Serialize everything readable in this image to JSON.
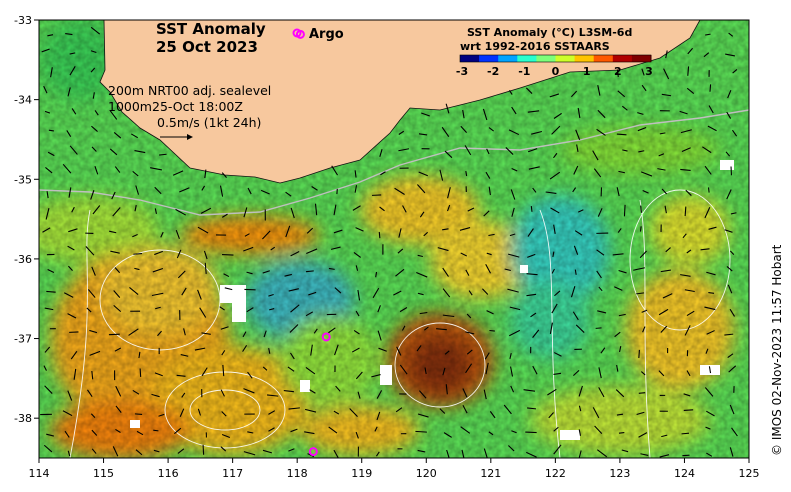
{
  "map": {
    "title_line1": "SST Anomaly",
    "title_line2": "25 Oct 2023",
    "legend_argo_label": "Argo",
    "info": {
      "line1": "200m  NRT00 adj. sealevel",
      "line2": "1000m25-Oct 18:00Z",
      "line3": "0.5m/s (1kt 24h)"
    },
    "colorbar": {
      "title_line1": "SST Anomaly (°C) L3SM-6d",
      "title_line2": "wrt 1992-2016 SSTAARS",
      "ticks": [
        "-3",
        "-2",
        "-1",
        "0",
        "1",
        "2",
        "3"
      ],
      "range": [
        -3,
        3
      ],
      "colors": [
        "#00007f",
        "#0032ff",
        "#00a4ff",
        "#29ffce",
        "#7dff7a",
        "#ceff29",
        "#ffc400",
        "#ff5900",
        "#b00000",
        "#7f0000"
      ]
    },
    "credit": "© IMOS 02-Nov-2023 11:57 Hobart",
    "x_axis": {
      "ticks": [
        "114",
        "115",
        "116",
        "117",
        "118",
        "119",
        "120",
        "121",
        "122",
        "123",
        "124",
        "125"
      ],
      "range": [
        114,
        125
      ]
    },
    "y_axis": {
      "ticks": [
        "-33",
        "-34",
        "-35",
        "-36",
        "-37",
        "-38"
      ],
      "range": [
        -38.5,
        -33
      ]
    },
    "argo_floats": [
      {
        "lon": 118.05,
        "lat": -33.18
      },
      {
        "lon": 118.45,
        "lat": -36.98
      },
      {
        "lon": 118.25,
        "lat": -38.42
      }
    ],
    "land_color": "#f7c89e",
    "argo_color": "#ff00ff"
  }
}
